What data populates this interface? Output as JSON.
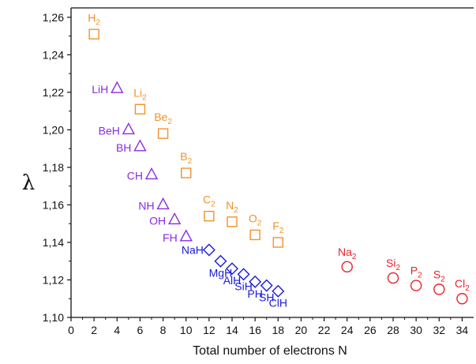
{
  "chart_data": {
    "type": "scatter",
    "title": "",
    "xlabel": "Total number of electrons N",
    "ylabel": "λ",
    "xlim": [
      0,
      35
    ],
    "ylim": [
      1.1,
      1.265
    ],
    "x_ticks": [
      0,
      2,
      4,
      6,
      8,
      10,
      12,
      14,
      16,
      18,
      20,
      22,
      24,
      26,
      28,
      30,
      32,
      34
    ],
    "y_ticks": [
      "1,10",
      "1,12",
      "1,14",
      "1,16",
      "1,18",
      "1,20",
      "1,22",
      "1,24",
      "1,26"
    ],
    "grid": false,
    "legend": "none",
    "series": [
      {
        "marker": "square",
        "color": "#f0922e",
        "points": [
          {
            "x": 2,
            "y": 1.251,
            "label": "H",
            "sub": "2"
          },
          {
            "x": 6,
            "y": 1.211,
            "label": "Li",
            "sub": "2"
          },
          {
            "x": 8,
            "y": 1.198,
            "label": "Be",
            "sub": "2"
          },
          {
            "x": 10,
            "y": 1.177,
            "label": "B",
            "sub": "2"
          },
          {
            "x": 12,
            "y": 1.154,
            "label": "C",
            "sub": "2"
          },
          {
            "x": 14,
            "y": 1.151,
            "label": "N",
            "sub": "2"
          },
          {
            "x": 16,
            "y": 1.144,
            "label": "O",
            "sub": "2"
          },
          {
            "x": 18,
            "y": 1.14,
            "label": "F",
            "sub": "2"
          }
        ]
      },
      {
        "marker": "triangle",
        "color": "#8a2be2",
        "points": [
          {
            "x": 4,
            "y": 1.222,
            "label": "LiH",
            "sub": ""
          },
          {
            "x": 5,
            "y": 1.2,
            "label": "BeH",
            "sub": ""
          },
          {
            "x": 6,
            "y": 1.191,
            "label": "BH",
            "sub": ""
          },
          {
            "x": 7,
            "y": 1.176,
            "label": "CH",
            "sub": ""
          },
          {
            "x": 8,
            "y": 1.16,
            "label": "NH",
            "sub": ""
          },
          {
            "x": 9,
            "y": 1.152,
            "label": "OH",
            "sub": ""
          },
          {
            "x": 10,
            "y": 1.143,
            "label": "FH",
            "sub": ""
          }
        ]
      },
      {
        "marker": "diamond",
        "color": "#1a1adb",
        "points": [
          {
            "x": 12,
            "y": 1.136,
            "label": "NaH",
            "sub": ""
          },
          {
            "x": 13,
            "y": 1.13,
            "label": "MgH",
            "sub": ""
          },
          {
            "x": 14,
            "y": 1.126,
            "label": "AlH",
            "sub": ""
          },
          {
            "x": 15,
            "y": 1.123,
            "label": "SiH",
            "sub": ""
          },
          {
            "x": 16,
            "y": 1.119,
            "label": "PH",
            "sub": ""
          },
          {
            "x": 17,
            "y": 1.117,
            "label": "SH",
            "sub": ""
          },
          {
            "x": 18,
            "y": 1.114,
            "label": "ClH",
            "sub": ""
          }
        ]
      },
      {
        "marker": "circle",
        "color": "#e8222a",
        "points": [
          {
            "x": 24,
            "y": 1.127,
            "label": "Na",
            "sub": "2"
          },
          {
            "x": 28,
            "y": 1.121,
            "label": "Si",
            "sub": "2"
          },
          {
            "x": 30,
            "y": 1.117,
            "label": "P",
            "sub": "2"
          },
          {
            "x": 32,
            "y": 1.115,
            "label": "S",
            "sub": "2"
          },
          {
            "x": 34,
            "y": 1.11,
            "label": "Cl",
            "sub": "2"
          }
        ]
      }
    ]
  }
}
